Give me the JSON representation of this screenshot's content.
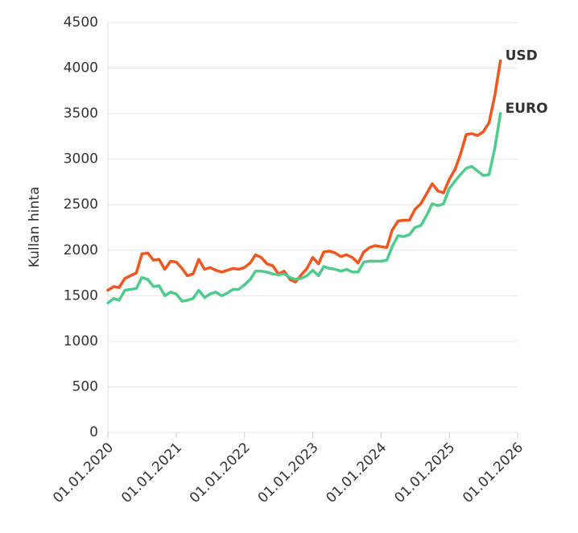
{
  "chart_data": {
    "type": "line",
    "y_label": "Kullan hinta",
    "x": [
      "2020-01-01",
      "2020-02-01",
      "2020-03-01",
      "2020-04-01",
      "2020-05-01",
      "2020-06-01",
      "2020-07-01",
      "2020-08-01",
      "2020-09-01",
      "2020-10-01",
      "2020-11-01",
      "2020-12-01",
      "2021-01-01",
      "2021-02-01",
      "2021-03-01",
      "2021-04-01",
      "2021-05-01",
      "2021-06-01",
      "2021-07-01",
      "2021-08-01",
      "2021-09-01",
      "2021-10-01",
      "2021-11-01",
      "2021-12-01",
      "2022-01-01",
      "2022-02-01",
      "2022-03-01",
      "2022-04-01",
      "2022-05-01",
      "2022-06-01",
      "2022-07-01",
      "2022-08-01",
      "2022-09-01",
      "2022-10-01",
      "2022-11-01",
      "2022-12-01",
      "2023-01-01",
      "2023-02-01",
      "2023-03-01",
      "2023-04-01",
      "2023-05-01",
      "2023-06-01",
      "2023-07-01",
      "2023-08-01",
      "2023-09-01",
      "2023-10-01",
      "2023-11-01",
      "2023-12-01",
      "2024-01-01",
      "2024-02-01",
      "2024-03-01",
      "2024-04-01",
      "2024-05-01",
      "2024-06-01",
      "2024-07-01",
      "2024-08-01",
      "2024-09-01",
      "2024-10-01",
      "2024-11-01",
      "2024-12-01",
      "2025-01-01",
      "2025-02-01",
      "2025-03-01",
      "2025-04-01",
      "2025-05-01",
      "2025-06-01",
      "2025-07-01",
      "2025-08-01",
      "2025-09-01",
      "2025-10-01"
    ],
    "series": [
      {
        "name": "USD",
        "color": "#f0561d",
        "values": [
          1560,
          1600,
          1590,
          1690,
          1720,
          1750,
          1960,
          1970,
          1890,
          1900,
          1790,
          1880,
          1870,
          1800,
          1720,
          1740,
          1900,
          1790,
          1810,
          1780,
          1760,
          1780,
          1800,
          1790,
          1810,
          1860,
          1950,
          1920,
          1850,
          1830,
          1740,
          1770,
          1680,
          1650,
          1730,
          1800,
          1920,
          1850,
          1980,
          1990,
          1970,
          1930,
          1950,
          1920,
          1860,
          1980,
          2030,
          2050,
          2040,
          2030,
          2220,
          2320,
          2330,
          2330,
          2450,
          2510,
          2620,
          2730,
          2650,
          2630,
          2780,
          2890,
          3050,
          3270,
          3280,
          3260,
          3300,
          3400,
          3700,
          4080
        ]
      },
      {
        "name": "EURO",
        "color": "#4fcb8e",
        "values": [
          1420,
          1470,
          1450,
          1560,
          1570,
          1580,
          1700,
          1680,
          1600,
          1610,
          1500,
          1540,
          1520,
          1440,
          1450,
          1470,
          1560,
          1480,
          1520,
          1540,
          1500,
          1530,
          1570,
          1570,
          1620,
          1680,
          1770,
          1770,
          1760,
          1740,
          1730,
          1740,
          1700,
          1680,
          1690,
          1720,
          1780,
          1720,
          1820,
          1800,
          1790,
          1770,
          1790,
          1760,
          1760,
          1870,
          1880,
          1880,
          1880,
          1890,
          2040,
          2160,
          2150,
          2170,
          2250,
          2270,
          2380,
          2510,
          2490,
          2510,
          2680,
          2760,
          2830,
          2900,
          2920,
          2870,
          2820,
          2830,
          3120,
          3500
        ]
      }
    ],
    "xlim": [
      "2020-01-01",
      "2026-01-01"
    ],
    "xticks": [
      {
        "value": "2020-01-01",
        "label": "01.01.2020"
      },
      {
        "value": "2021-01-01",
        "label": "01.01.2021"
      },
      {
        "value": "2022-01-01",
        "label": "01.01.2022"
      },
      {
        "value": "2023-01-01",
        "label": "01.01.2023"
      },
      {
        "value": "2024-01-01",
        "label": "01.01.2024"
      },
      {
        "value": "2025-01-01",
        "label": "01.01.2025"
      },
      {
        "value": "2026-01-01",
        "label": "01.01.2026"
      }
    ],
    "ylim": [
      0,
      4500
    ],
    "yticks": [
      0,
      500,
      1000,
      1500,
      2000,
      2500,
      3000,
      3500,
      4000,
      4500
    ],
    "grid": true
  }
}
